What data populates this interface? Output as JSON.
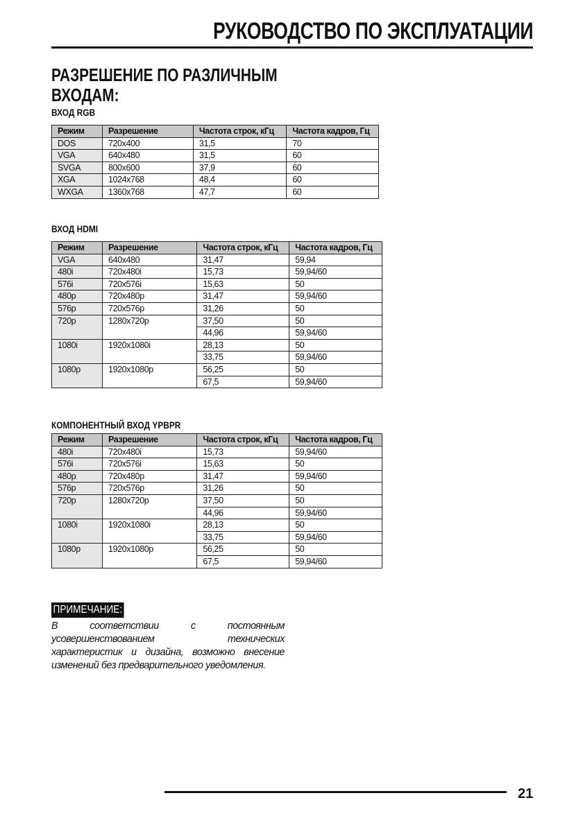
{
  "header": {
    "title": "РУКОВОДСТВО ПО ЭКСПЛУАТАЦИИ"
  },
  "section": {
    "title_line1": "РАЗРЕШЕНИЕ ПО РАЗЛИЧНЫМ",
    "title_line2": "ВХОДАМ:"
  },
  "columns": [
    "Режим",
    "Разрешение",
    "Частота строк, кГц",
    "Частота кадров, Гц"
  ],
  "tables": [
    {
      "title": "ВХОД RGB",
      "rows": [
        [
          [
            "DOS"
          ],
          [
            "720x400"
          ],
          [
            "31,5"
          ],
          [
            "70"
          ]
        ],
        [
          [
            "VGA"
          ],
          [
            "640x480"
          ],
          [
            "31,5"
          ],
          [
            "60"
          ]
        ],
        [
          [
            "SVGA"
          ],
          [
            "800x600"
          ],
          [
            "37,9"
          ],
          [
            "60"
          ]
        ],
        [
          [
            "XGA"
          ],
          [
            "1024x768"
          ],
          [
            "48,4"
          ],
          [
            "60"
          ]
        ],
        [
          [
            "WXGA"
          ],
          [
            "1360x768"
          ],
          [
            "47,7"
          ],
          [
            "60"
          ]
        ]
      ]
    },
    {
      "title": "ВХОД HDMI",
      "rows": [
        [
          [
            "VGA"
          ],
          [
            "640x480"
          ],
          [
            "31,47"
          ],
          [
            "59,94"
          ]
        ],
        [
          [
            "480i"
          ],
          [
            "720x480i"
          ],
          [
            "15,73"
          ],
          [
            "59,94/60"
          ]
        ],
        [
          [
            "576i"
          ],
          [
            "720x576i"
          ],
          [
            "15,63"
          ],
          [
            "50"
          ]
        ],
        [
          [
            "480p"
          ],
          [
            "720x480p"
          ],
          [
            "31,47"
          ],
          [
            "59,94/60"
          ]
        ],
        [
          [
            "576p"
          ],
          [
            "720x576p"
          ],
          [
            "31,26"
          ],
          [
            "50"
          ]
        ],
        [
          [
            "720p"
          ],
          [
            "1280x720p"
          ],
          [
            "37,50",
            "44,96"
          ],
          [
            "50",
            "59,94/60"
          ]
        ],
        [
          [
            "1080i"
          ],
          [
            "1920x1080i"
          ],
          [
            "28,13",
            "33,75"
          ],
          [
            "50",
            "59,94/60"
          ]
        ],
        [
          [
            "1080p"
          ],
          [
            "1920x1080p"
          ],
          [
            "56,25",
            "67,5"
          ],
          [
            "50",
            "59,94/60"
          ]
        ]
      ]
    },
    {
      "title": "КОМПОНЕНТНЫЙ ВХОД YPBPR",
      "rows": [
        [
          [
            "480i"
          ],
          [
            "720x480i"
          ],
          [
            "15,73"
          ],
          [
            "59,94/60"
          ]
        ],
        [
          [
            "576i"
          ],
          [
            "720x576i"
          ],
          [
            "15,63"
          ],
          [
            "50"
          ]
        ],
        [
          [
            "480p"
          ],
          [
            "720x480p"
          ],
          [
            "31,47"
          ],
          [
            "59,94/60"
          ]
        ],
        [
          [
            "576p"
          ],
          [
            "720x576p"
          ],
          [
            "31,26"
          ],
          [
            "50"
          ]
        ],
        [
          [
            "720p"
          ],
          [
            "1280x720p"
          ],
          [
            "37,50",
            "44,96"
          ],
          [
            "50",
            "59,94/60"
          ]
        ],
        [
          [
            "1080i"
          ],
          [
            "1920x1080i"
          ],
          [
            "28,13",
            "33,75"
          ],
          [
            "50",
            "59,94/60"
          ]
        ],
        [
          [
            "1080p"
          ],
          [
            "1920x1080p"
          ],
          [
            "56,25",
            "67,5"
          ],
          [
            "50",
            "59,94/60"
          ]
        ]
      ]
    }
  ],
  "note": {
    "label": "ПРИМЕЧАНИЕ:",
    "text": "В соответствии с постоянным усовершенствованием технических характеристик и дизайна, возможно внесение изменений без предварительного уведомления."
  },
  "footer": {
    "page_number": "21"
  }
}
